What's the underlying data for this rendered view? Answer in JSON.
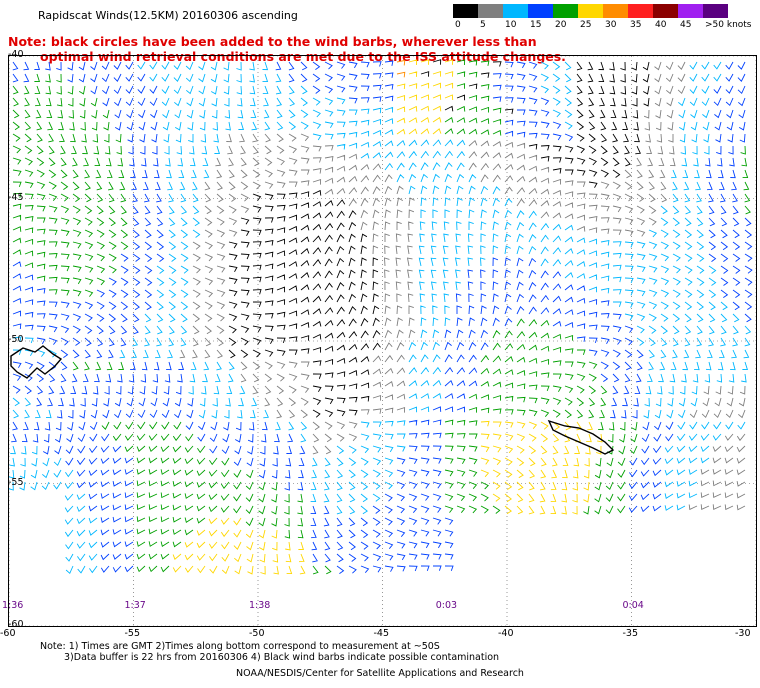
{
  "title": "Rapidscat Winds(12.5KM) 20160306 ascending",
  "note_red": {
    "line1": "Note: black circles have been added to the wind barbs, wherever less than",
    "line2": "optimal wind retrieval conditions are met due to the ISS attitude changes."
  },
  "legend": {
    "labels": [
      "0",
      "5",
      "10",
      "15",
      "20",
      "25",
      "30",
      "35",
      "40",
      "45",
      ">50 knots"
    ],
    "colors": [
      "#000000",
      "#7f7f7f",
      "#00b7ff",
      "#0040ff",
      "#00a000",
      "#ffd700",
      "#ff8c00",
      "#ff2020",
      "#8b0000",
      "#a020f0",
      "#5a0080"
    ]
  },
  "map": {
    "lon_min": -60,
    "lon_max": -30,
    "lat_min": -60,
    "lat_max": -40,
    "lon_labels": [
      "-60",
      "-55",
      "-50",
      "-45",
      "-40",
      "-35",
      "-30"
    ],
    "lat_labels": [
      "-40",
      "-45",
      "-50",
      "-55",
      "-60"
    ],
    "time_labels": [
      {
        "text": "1:36",
        "lon": -60
      },
      {
        "text": "1:37",
        "lon": -55
      },
      {
        "text": "1:38",
        "lon": -50
      },
      {
        "text": "0:03",
        "lon": -42.5
      },
      {
        "text": "0:04",
        "lon": -35
      }
    ]
  },
  "bottom_notes": {
    "line1": "Note: 1) Times are GMT 2)Times along bottom correspond to measurement at ~50S",
    "line2": "3)Data buffer is 22 hrs from 20160306 4) Black wind barbs indicate possible contamination"
  },
  "credit": "NOAA/NESDIS/Center for Satellite Applications and Research"
}
